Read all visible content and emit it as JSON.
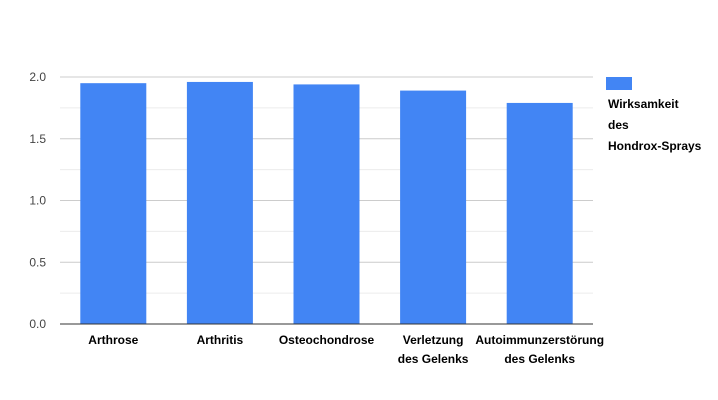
{
  "chart_data": {
    "type": "bar",
    "categories": [
      [
        "Arthrose"
      ],
      [
        "Arthritis"
      ],
      [
        "Osteochondrose"
      ],
      [
        "Verletzung",
        "des Gelenks"
      ],
      [
        "Autoimmunzerstörung",
        "des Gelenks"
      ]
    ],
    "series": [
      {
        "name": [
          "Wirksamkeit",
          "des",
          "Hondrox-Sprays"
        ],
        "values": [
          1.95,
          1.96,
          1.94,
          1.89,
          1.79
        ],
        "color": "#4285f4"
      }
    ],
    "ylim": [
      0,
      2.0
    ],
    "yticks": [
      "0.0",
      "0.5",
      "1.0",
      "1.5",
      "2.0"
    ],
    "grid": true,
    "legend_position": "right"
  }
}
